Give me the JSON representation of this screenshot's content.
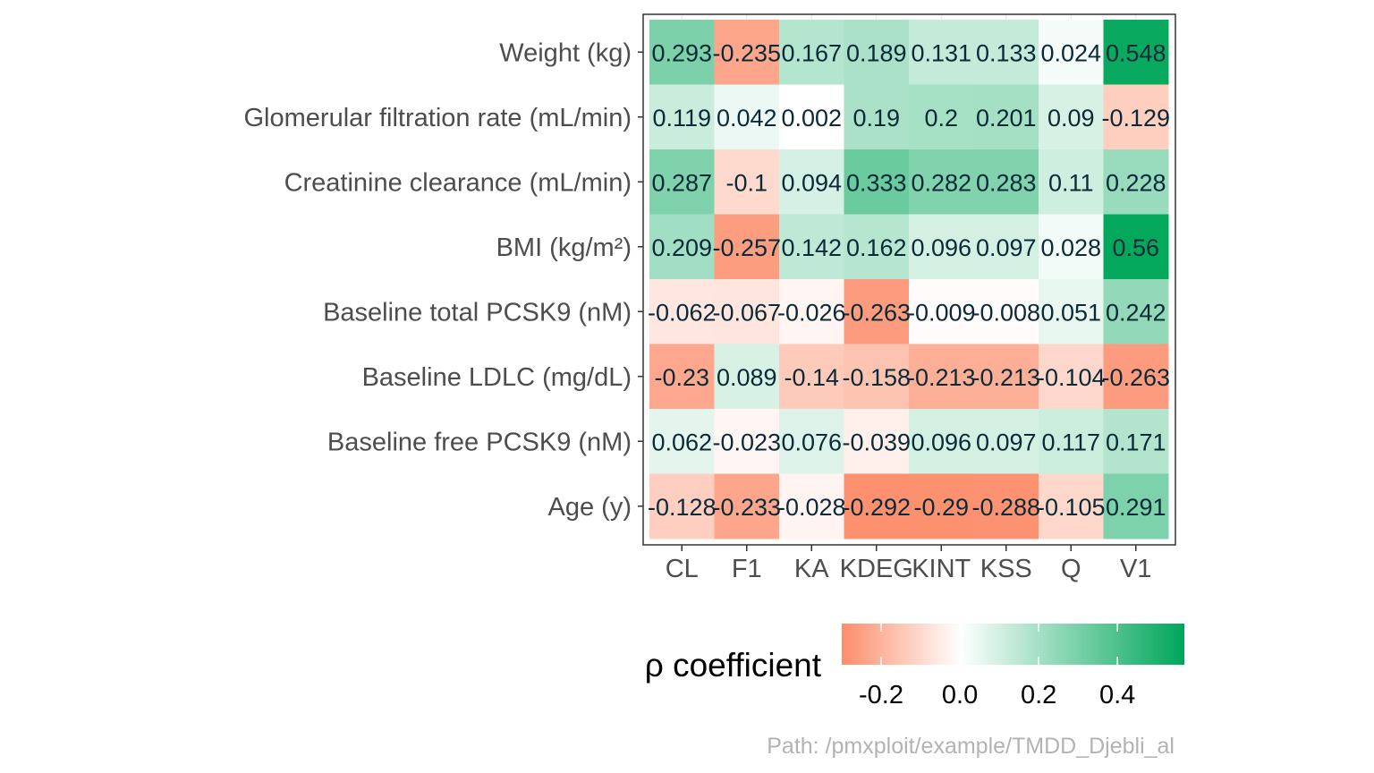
{
  "chart_data": {
    "type": "heatmap",
    "title": "",
    "xlabel": "",
    "ylabel": "",
    "x_categories": [
      "CL",
      "F1",
      "KA",
      "KDEG",
      "KINT",
      "KSS",
      "Q",
      "V1"
    ],
    "y_categories": [
      "Weight (kg)",
      "Glomerular filtration rate (mL/min)",
      "Creatinine clearance (mL/min)",
      "BMI (kg/m²)",
      "Baseline total PCSK9 (nM)",
      "Baseline LDLC (mg/dL)",
      "Baseline free PCSK9 (nM)",
      "Age (y)"
    ],
    "values": [
      [
        0.293,
        -0.235,
        0.167,
        0.189,
        0.131,
        0.133,
        0.024,
        0.548
      ],
      [
        0.119,
        0.042,
        0.002,
        0.19,
        0.2,
        0.201,
        0.09,
        -0.129
      ],
      [
        0.287,
        -0.1,
        0.094,
        0.333,
        0.282,
        0.283,
        0.11,
        0.228
      ],
      [
        0.209,
        -0.257,
        0.142,
        0.162,
        0.096,
        0.097,
        0.028,
        0.56
      ],
      [
        -0.062,
        -0.067,
        -0.026,
        -0.263,
        -0.009,
        -0.008,
        0.051,
        0.242
      ],
      [
        -0.23,
        0.089,
        -0.14,
        -0.158,
        -0.213,
        -0.213,
        -0.104,
        -0.263
      ],
      [
        0.062,
        -0.023,
        0.076,
        -0.039,
        0.096,
        0.097,
        0.117,
        0.171
      ],
      [
        -0.128,
        -0.233,
        -0.028,
        -0.292,
        -0.29,
        -0.288,
        -0.105,
        0.291
      ]
    ],
    "labels": [
      [
        "0.293",
        "-0.235",
        "0.167",
        "0.189",
        "0.131",
        "0.133",
        "0.024",
        "0.548"
      ],
      [
        "0.119",
        "0.042",
        "0.002",
        "0.19",
        "0.2",
        "0.201",
        "0.09",
        "-0.129"
      ],
      [
        "0.287",
        "-0.1",
        "0.094",
        "0.333",
        "0.282",
        "0.283",
        "0.11",
        "0.228"
      ],
      [
        "0.209",
        "-0.257",
        "0.142",
        "0.162",
        "0.096",
        "0.097",
        "0.028",
        "0.56"
      ],
      [
        "-0.062",
        "-0.067",
        "-0.026",
        "-0.263",
        "-0.009",
        "-0.008",
        "0.051",
        "0.242"
      ],
      [
        "-0.23",
        "0.089",
        "-0.14",
        "-0.158",
        "-0.213",
        "-0.213",
        "-0.104",
        "-0.263"
      ],
      [
        "0.062",
        "-0.023",
        "0.076",
        "-0.039",
        "0.096",
        "0.097",
        "0.117",
        "0.171"
      ],
      [
        "-0.128",
        "-0.233",
        "-0.028",
        "-0.292",
        "-0.29",
        "-0.288",
        "-0.105",
        "0.291"
      ]
    ],
    "legend": {
      "title": "ρ coefficient",
      "ticks": [
        -0.2,
        0.0,
        0.2,
        0.4
      ],
      "tick_labels": [
        "-0.2",
        "0.0",
        "0.2",
        "0.4"
      ],
      "range": [
        -0.3,
        0.57
      ],
      "placement": "bottom"
    },
    "colors": {
      "low": "#fc8d6b",
      "mid": "#ffffff",
      "high": "#00a65a"
    },
    "grid": true
  },
  "caption": "Path: /pmxploit/example/TMDD_Djebli_al"
}
